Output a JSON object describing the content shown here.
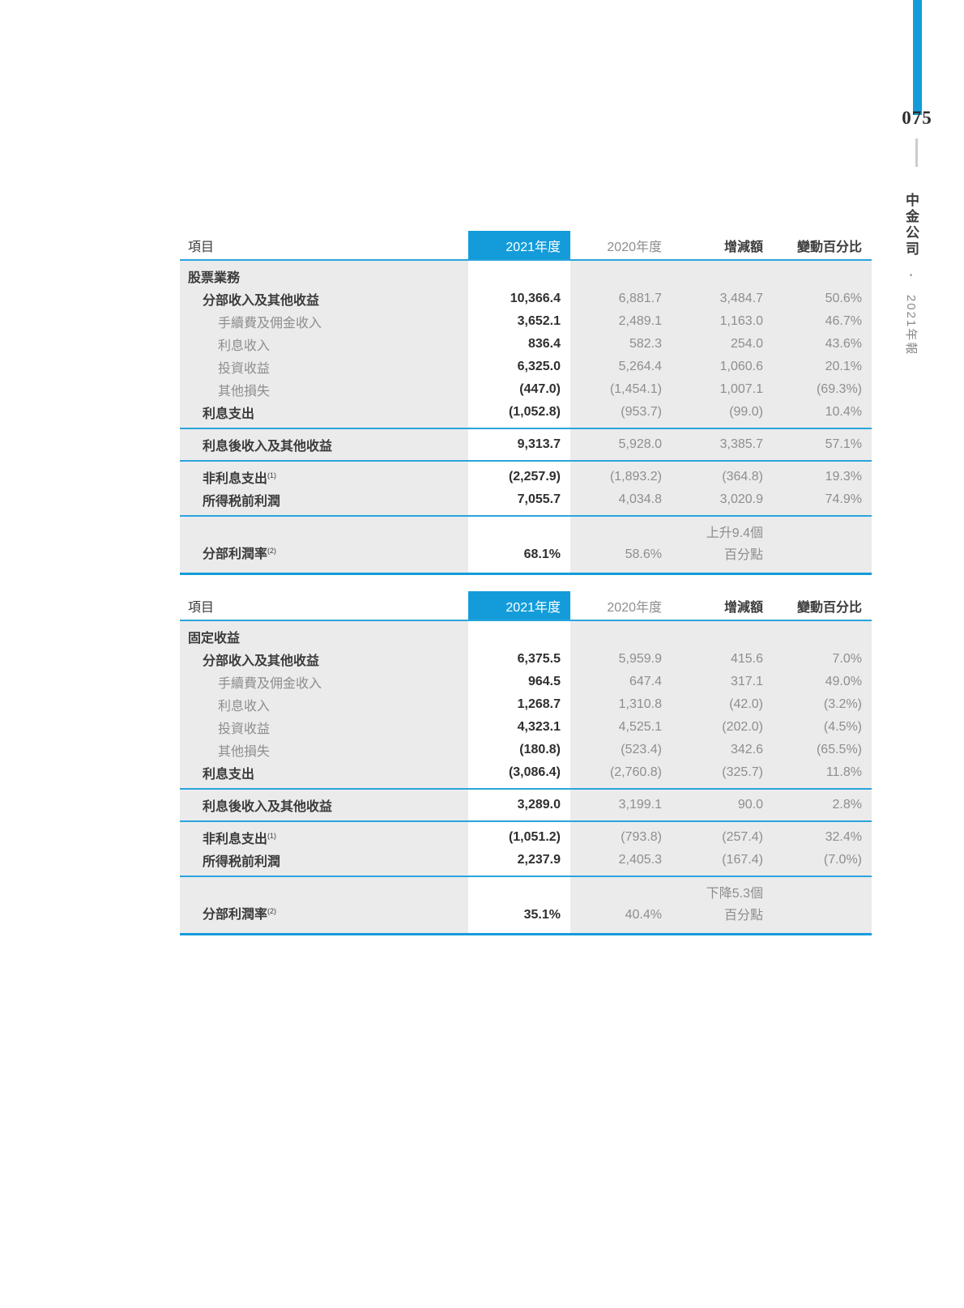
{
  "page": {
    "page_number": "075"
  },
  "sidebar": {
    "company": "中金公司",
    "separator": "•",
    "year": "2021年報"
  },
  "colors": {
    "accent_blue": "#149CDA",
    "table_background": "#EBEBEB",
    "dark_text": "#3B3B3B",
    "muted_text": "#8E8E8E"
  },
  "tables": [
    {
      "headers": {
        "item": "項目",
        "col2021": "2021年度",
        "col2020": "2020年度",
        "change": "增減額",
        "change_pct": "變動百分比"
      },
      "rows": [
        {
          "style": "section",
          "indent": 0,
          "label": "股票業務",
          "v2021": "",
          "v2020": "",
          "chg": "",
          "pct": ""
        },
        {
          "style": "strong",
          "indent": 1,
          "label": "分部收入及其他收益",
          "v2021": "10,366.4",
          "v2020": "6,881.7",
          "chg": "3,484.7",
          "pct": "50.6%"
        },
        {
          "style": "sub",
          "indent": 2,
          "label": "手續費及佣金收入",
          "v2021": "3,652.1",
          "v2020": "2,489.1",
          "chg": "1,163.0",
          "pct": "46.7%"
        },
        {
          "style": "sub",
          "indent": 2,
          "label": "利息收入",
          "v2021": "836.4",
          "v2020": "582.3",
          "chg": "254.0",
          "pct": "43.6%"
        },
        {
          "style": "sub",
          "indent": 2,
          "label": "投資收益",
          "v2021": "6,325.0",
          "v2020": "5,264.4",
          "chg": "1,060.6",
          "pct": "20.1%"
        },
        {
          "style": "sub",
          "indent": 2,
          "label": "其他損失",
          "v2021": "(447.0)",
          "v2020": "(1,454.1)",
          "chg": "1,007.1",
          "pct": "(69.3%)"
        },
        {
          "style": "strong",
          "indent": 1,
          "label": "利息支出",
          "v2021": "(1,052.8)",
          "v2020": "(953.7)",
          "chg": "(99.0)",
          "pct": "10.4%"
        },
        {
          "type": "divider"
        },
        {
          "style": "strong",
          "indent": 1,
          "label": "利息後收入及其他收益",
          "v2021": "9,313.7",
          "v2020": "5,928.0",
          "chg": "3,385.7",
          "pct": "57.1%"
        },
        {
          "type": "divider"
        },
        {
          "style": "strong",
          "indent": 1,
          "label": "非利息支出",
          "sup": "(1)",
          "v2021": "(2,257.9)",
          "v2020": "(1,893.2)",
          "chg": "(364.8)",
          "pct": "19.3%"
        },
        {
          "style": "strong",
          "indent": 1,
          "label": "所得税前利潤",
          "v2021": "7,055.7",
          "v2020": "4,034.8",
          "chg": "3,020.9",
          "pct": "74.9%"
        },
        {
          "type": "divider"
        },
        {
          "type": "ratio",
          "style": "strong",
          "indent": 1,
          "label": "分部利潤率",
          "sup": "(2)",
          "v2021": "68.1%",
          "v2020": "58.6%",
          "chg_line1": "上升9.4個",
          "chg_line2": "百分點",
          "pct": ""
        }
      ]
    },
    {
      "headers": {
        "item": "項目",
        "col2021": "2021年度",
        "col2020": "2020年度",
        "change": "增減額",
        "change_pct": "變動百分比"
      },
      "rows": [
        {
          "style": "section",
          "indent": 0,
          "label": "固定收益",
          "v2021": "",
          "v2020": "",
          "chg": "",
          "pct": ""
        },
        {
          "style": "strong",
          "indent": 1,
          "label": "分部收入及其他收益",
          "v2021": "6,375.5",
          "v2020": "5,959.9",
          "chg": "415.6",
          "pct": "7.0%"
        },
        {
          "style": "sub",
          "indent": 2,
          "label": "手續費及佣金收入",
          "v2021": "964.5",
          "v2020": "647.4",
          "chg": "317.1",
          "pct": "49.0%"
        },
        {
          "style": "sub",
          "indent": 2,
          "label": "利息收入",
          "v2021": "1,268.7",
          "v2020": "1,310.8",
          "chg": "(42.0)",
          "pct": "(3.2%)"
        },
        {
          "style": "sub",
          "indent": 2,
          "label": "投資收益",
          "v2021": "4,323.1",
          "v2020": "4,525.1",
          "chg": "(202.0)",
          "pct": "(4.5%)"
        },
        {
          "style": "sub",
          "indent": 2,
          "label": "其他損失",
          "v2021": "(180.8)",
          "v2020": "(523.4)",
          "chg": "342.6",
          "pct": "(65.5%)"
        },
        {
          "style": "strong",
          "indent": 1,
          "label": "利息支出",
          "v2021": "(3,086.4)",
          "v2020": "(2,760.8)",
          "chg": "(325.7)",
          "pct": "11.8%"
        },
        {
          "type": "divider"
        },
        {
          "style": "strong",
          "indent": 1,
          "label": "利息後收入及其他收益",
          "v2021": "3,289.0",
          "v2020": "3,199.1",
          "chg": "90.0",
          "pct": "2.8%"
        },
        {
          "type": "divider"
        },
        {
          "style": "strong",
          "indent": 1,
          "label": "非利息支出",
          "sup": "(1)",
          "v2021": "(1,051.2)",
          "v2020": "(793.8)",
          "chg": "(257.4)",
          "pct": "32.4%"
        },
        {
          "style": "strong",
          "indent": 1,
          "label": "所得税前利潤",
          "v2021": "2,237.9",
          "v2020": "2,405.3",
          "chg": "(167.4)",
          "pct": "(7.0%)"
        },
        {
          "type": "divider"
        },
        {
          "type": "ratio",
          "style": "strong",
          "indent": 1,
          "label": "分部利潤率",
          "sup": "(2)",
          "v2021": "35.1%",
          "v2020": "40.4%",
          "chg_line1": "下降5.3個",
          "chg_line2": "百分點",
          "pct": ""
        }
      ]
    }
  ]
}
